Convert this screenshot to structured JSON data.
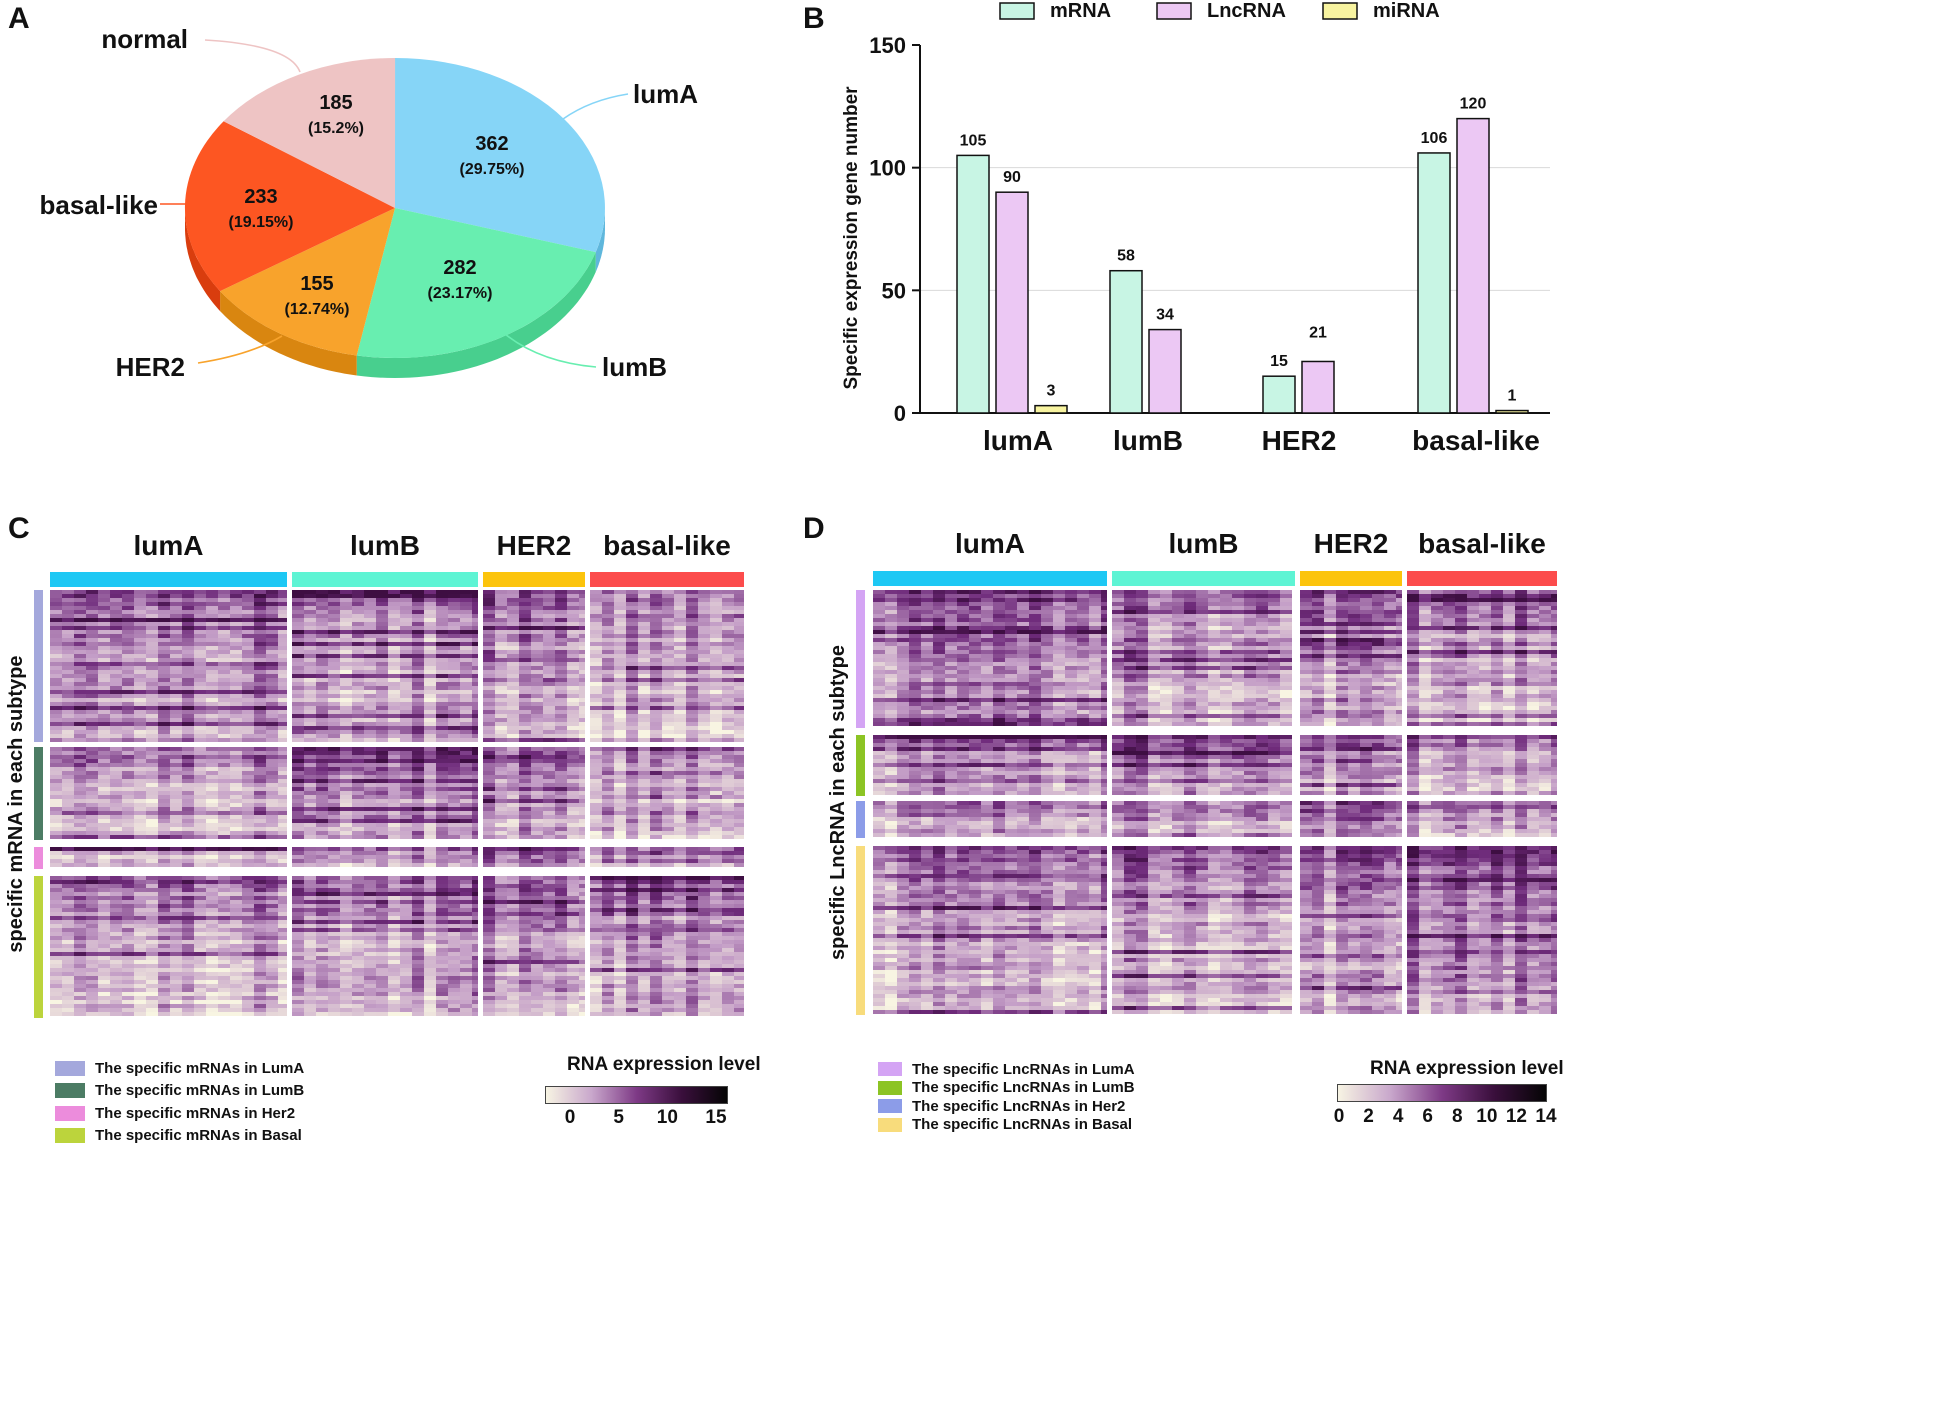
{
  "panels": {
    "a": "A",
    "b": "B",
    "c": "C",
    "d": "D"
  },
  "pie": {
    "slices": [
      {
        "name": "lumA",
        "value": "362",
        "pct": "(29.75%)",
        "share": 29.75,
        "color": "#86d5f7",
        "side": "#5fb7dc"
      },
      {
        "name": "lumB",
        "value": "282",
        "pct": "(23.17%)",
        "share": 23.17,
        "color": "#68eeb0",
        "side": "#48cf8e"
      },
      {
        "name": "HER2",
        "value": "155",
        "pct": "(12.74%)",
        "share": 12.74,
        "color": "#f8a32c",
        "side": "#d98610"
      },
      {
        "name": "basal-like",
        "value": "233",
        "pct": "(19.15%)",
        "share": 19.15,
        "color": "#fd5622",
        "side": "#d93d0e"
      },
      {
        "name": "normal",
        "value": "185",
        "pct": "(15.2%)",
        "share": 15.2,
        "color": "#eec4c4",
        "side": "#d4a2a2"
      }
    ]
  },
  "chart_data": [
    {
      "type": "pie",
      "categories": [
        "lumA",
        "lumB",
        "HER2",
        "basal-like",
        "normal"
      ],
      "values": [
        362,
        282,
        155,
        233,
        185
      ],
      "percent_labels": [
        "(29.75%)",
        "(23.17%)",
        "(12.74%)",
        "(19.15%)",
        "(15.2%)"
      ]
    },
    {
      "type": "bar",
      "categories": [
        "lumA",
        "lumB",
        "HER2",
        "basal-like"
      ],
      "series": [
        {
          "name": "mRNA",
          "values": [
            105,
            58,
            15,
            106
          ],
          "color": "#c8f5e4"
        },
        {
          "name": "LncRNA",
          "values": [
            90,
            34,
            21,
            120
          ],
          "color": "#ecc8f4"
        },
        {
          "name": "miRNA",
          "values": [
            3,
            null,
            null,
            1
          ],
          "color": "#f8f4a0"
        }
      ],
      "value_labels": [
        [
          "105",
          "90",
          "3"
        ],
        [
          "58",
          "34",
          ""
        ],
        [
          "15",
          "21",
          ""
        ],
        [
          "106",
          "120",
          "1"
        ]
      ],
      "ylabel": "Specific expression gene number",
      "ylim": [
        0,
        150
      ],
      "yticks": [
        "0",
        "50",
        "100",
        "150"
      ],
      "legend_position": "top",
      "grid": true
    },
    {
      "type": "heatmap",
      "columns": [
        "lumA",
        "lumB",
        "HER2",
        "basal-like"
      ],
      "column_colors": [
        "#1ec8f4",
        "#5ef4d4",
        "#fcc40c",
        "#fc4c4c"
      ],
      "ylabel": "specific mRNA in each subtype",
      "row_groups": [
        {
          "label": "The specific mRNAs in LumA",
          "color": "#a4a8dc"
        },
        {
          "label": "The specific mRNAs in LumB",
          "color": "#4c7c64"
        },
        {
          "label": "The specific mRNAs in Her2",
          "color": "#ec8cdc"
        },
        {
          "label": "The specific mRNAs in Basal",
          "color": "#bcd43c"
        }
      ],
      "colorbar_title": "RNA expression level",
      "colorbar_ticks": [
        "0",
        "5",
        "10",
        "15"
      ],
      "colorbar_range": [
        0,
        15
      ]
    },
    {
      "type": "heatmap",
      "columns": [
        "lumA",
        "lumB",
        "HER2",
        "basal-like"
      ],
      "column_colors": [
        "#1ec8f4",
        "#5ef4d4",
        "#fcc40c",
        "#fc4c4c"
      ],
      "ylabel": "specific LncRNA in each subtype",
      "row_groups": [
        {
          "label": "The specific LncRNAs in LumA",
          "color": "#d4a4f4"
        },
        {
          "label": "The specific LncRNAs in LumB",
          "color": "#8cc424"
        },
        {
          "label": "The specific LncRNAs in Her2",
          "color": "#8c9ce8"
        },
        {
          "label": "The specific LncRNAs in Basal",
          "color": "#f8dc7c"
        }
      ],
      "colorbar_title": "RNA expression level",
      "colorbar_ticks": [
        "0",
        "2",
        "4",
        "6",
        "8",
        "10",
        "12",
        "14"
      ],
      "colorbar_range": [
        0,
        14
      ]
    }
  ]
}
